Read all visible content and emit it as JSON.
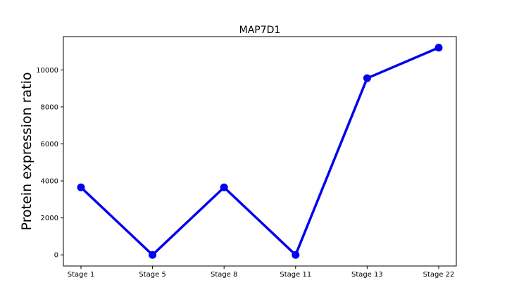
{
  "chart_data": {
    "type": "line",
    "title": "MAP7D1",
    "xlabel": "",
    "ylabel": "Protein expression ratio",
    "categories": [
      "Stage 1",
      "Stage 5",
      "Stage 8",
      "Stage 11",
      "Stage 13",
      "Stage 22"
    ],
    "series": [
      {
        "values": [
          3650,
          0,
          3650,
          0,
          9550,
          11200
        ]
      }
    ],
    "ylim": [
      -600,
      11800
    ],
    "yticks": [
      0,
      2000,
      4000,
      6000,
      8000,
      10000
    ],
    "ytick_labels": [
      "0",
      "2000",
      "4000",
      "6000",
      "8000",
      "10000"
    ],
    "grid": false,
    "legend": "none",
    "colors": {
      "line": "#0000ee",
      "marker": "#0000ee",
      "axes": "#000000"
    }
  }
}
